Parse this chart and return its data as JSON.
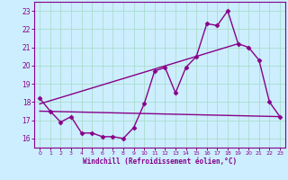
{
  "xlabel": "Windchill (Refroidissement éolien,°C)",
  "bg_color": "#cceeff",
  "line_color": "#880088",
  "grid_color": "#aaddcc",
  "xlim": [
    -0.5,
    23.5
  ],
  "ylim": [
    15.5,
    23.5
  ],
  "yticks": [
    16,
    17,
    18,
    19,
    20,
    21,
    22,
    23
  ],
  "xticks": [
    0,
    1,
    2,
    3,
    4,
    5,
    6,
    7,
    8,
    9,
    10,
    11,
    12,
    13,
    14,
    15,
    16,
    17,
    18,
    19,
    20,
    21,
    22,
    23
  ],
  "curve1_x": [
    0,
    1,
    2,
    3,
    4,
    5,
    6,
    7,
    8,
    9,
    10,
    11,
    12,
    13,
    14,
    15,
    16,
    17,
    18,
    19,
    20,
    21,
    22,
    23
  ],
  "curve1_y": [
    18.2,
    17.5,
    16.9,
    17.2,
    16.3,
    16.3,
    16.1,
    16.1,
    16.0,
    16.6,
    17.9,
    19.7,
    19.9,
    18.5,
    19.9,
    20.5,
    22.3,
    22.2,
    23.0,
    21.2,
    21.0,
    20.3,
    18.0,
    17.2
  ],
  "curve2_x": [
    0,
    23
  ],
  "curve2_y": [
    17.5,
    17.2
  ],
  "curve3_x": [
    0,
    19
  ],
  "curve3_y": [
    17.9,
    21.2
  ],
  "marker": "D",
  "markersize": 2.5,
  "linewidth": 1.0
}
